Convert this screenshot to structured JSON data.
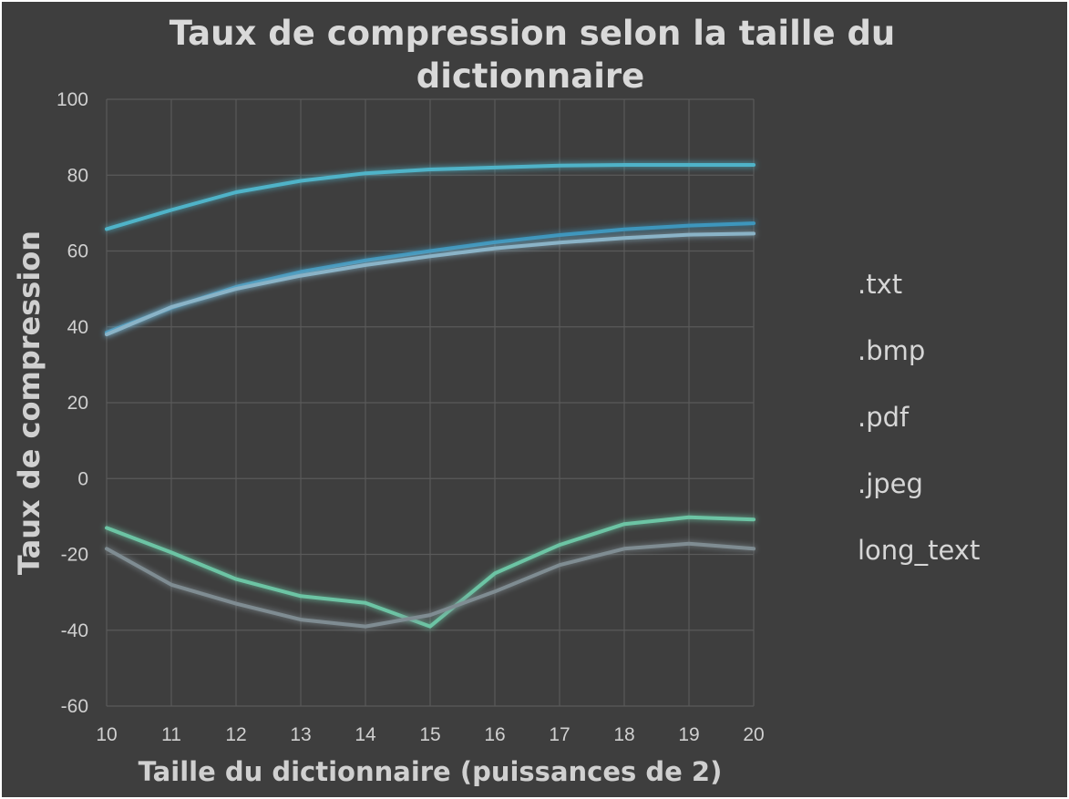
{
  "chart_data": {
    "type": "line",
    "title_line1": "Taux de compression selon la taille du",
    "title_line2": "dictionnaire",
    "xlabel": "Taille du dictionnaire (puissances de 2)",
    "ylabel": "Taux de compression",
    "x": [
      10,
      11,
      12,
      13,
      14,
      15,
      16,
      17,
      18,
      19,
      20
    ],
    "ylim": [
      -60,
      100
    ],
    "yticks": [
      -60,
      -40,
      -20,
      0,
      20,
      40,
      60,
      80,
      100
    ],
    "grid": true,
    "legend_position": "right",
    "series": [
      {
        "name": ".txt",
        "color": "#3d96bd",
        "values": [
          38.5,
          45,
          50.5,
          54.5,
          57.5,
          60,
          62.3,
          64.2,
          65.7,
          66.7,
          67.3
        ]
      },
      {
        "name": ".bmp",
        "color": "#4fb3c8",
        "values": [
          65.8,
          70.8,
          75.5,
          78.5,
          80.5,
          81.5,
          82.0,
          82.5,
          82.7,
          82.7,
          82.7
        ]
      },
      {
        "name": ".pdf",
        "color": "#6cc4a4",
        "values": [
          -13,
          -19.5,
          -26.5,
          -31,
          -32.8,
          -39,
          -25,
          -17.5,
          -12,
          -10.2,
          -10.8
        ]
      },
      {
        "name": ".jpeg",
        "color": "#7f8c92",
        "values": [
          -18.5,
          -28,
          -33,
          -37.2,
          -39,
          -36,
          -29.8,
          -22.8,
          -18.5,
          -17.2,
          -18.5
        ]
      },
      {
        "name": "long_text",
        "color": "#8ab3c7",
        "values": [
          38,
          45.2,
          50,
          53.5,
          56.3,
          58.6,
          60.7,
          62.2,
          63.4,
          64.3,
          64.6
        ]
      }
    ]
  }
}
